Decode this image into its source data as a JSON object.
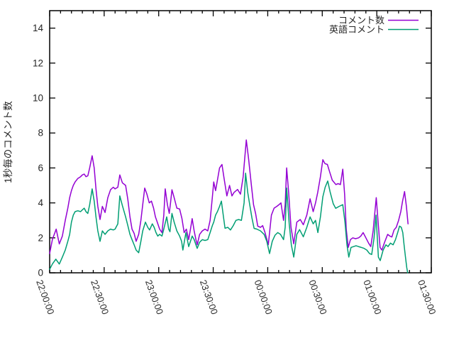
{
  "window": {
    "background": "#ffffff"
  },
  "chart_data": {
    "type": "line",
    "title": "",
    "xlabel": "",
    "ylabel": "1秒毎のコメント数",
    "grid": false,
    "legend_position": "top-right-inside",
    "axis_color": "#000000",
    "text_color": "#262626",
    "background": "#ffffff",
    "ylim": [
      0,
      15
    ],
    "y_ticks": [
      0,
      2,
      4,
      6,
      8,
      10,
      12,
      14
    ],
    "xlim_minutes": [
      0,
      210
    ],
    "x_minor_step_minutes": 6,
    "x_ticks": [
      {
        "t": 0,
        "label": "22:00:00"
      },
      {
        "t": 30,
        "label": "22:30:00"
      },
      {
        "t": 60,
        "label": "23:00:00"
      },
      {
        "t": 90,
        "label": "23:30:00"
      },
      {
        "t": 120,
        "label": "00:00:00"
      },
      {
        "t": 150,
        "label": "00:30:00"
      },
      {
        "t": 180,
        "label": "01:00:00"
      },
      {
        "t": 210,
        "label": "01:30:00"
      }
    ],
    "series": [
      {
        "name": "コメント数",
        "color": "#9400d3",
        "points": [
          [
            0,
            1.1
          ],
          [
            1.5,
            1.9
          ],
          [
            3.6,
            2.5
          ],
          [
            5.3,
            1.65
          ],
          [
            7,
            2.1
          ],
          [
            8.6,
            3.0
          ],
          [
            10,
            3.7
          ],
          [
            11,
            4.3
          ],
          [
            12,
            4.7
          ],
          [
            13,
            5.0
          ],
          [
            14,
            5.2
          ],
          [
            15.5,
            5.4
          ],
          [
            17,
            5.5
          ],
          [
            18,
            5.6
          ],
          [
            19,
            5.65
          ],
          [
            20,
            5.5
          ],
          [
            21,
            5.55
          ],
          [
            22,
            6.0
          ],
          [
            23.4,
            6.7
          ],
          [
            24.5,
            6.0
          ],
          [
            25.5,
            4.8
          ],
          [
            26.5,
            3.8
          ],
          [
            27.7,
            3.05
          ],
          [
            29,
            3.8
          ],
          [
            30.5,
            3.45
          ],
          [
            32,
            4.3
          ],
          [
            33.5,
            4.75
          ],
          [
            35,
            4.9
          ],
          [
            36,
            4.8
          ],
          [
            37.5,
            4.9
          ],
          [
            38.6,
            5.6
          ],
          [
            40,
            5.15
          ],
          [
            41.8,
            5.0
          ],
          [
            43,
            4.2
          ],
          [
            44.2,
            3.2
          ],
          [
            45.3,
            2.5
          ],
          [
            46.5,
            2.25
          ],
          [
            47.6,
            1.8
          ],
          [
            49,
            2.2
          ],
          [
            50.2,
            3.0
          ],
          [
            51.2,
            3.9
          ],
          [
            52.3,
            4.85
          ],
          [
            53.5,
            4.5
          ],
          [
            54.8,
            4.0
          ],
          [
            56,
            4.1
          ],
          [
            57.2,
            3.7
          ],
          [
            58.2,
            3.2
          ],
          [
            59.2,
            2.9
          ],
          [
            60.5,
            2.5
          ],
          [
            61.8,
            2.3
          ],
          [
            62.8,
            3.3
          ],
          [
            63.6,
            4.8
          ],
          [
            64.8,
            3.9
          ],
          [
            65.8,
            3.4
          ],
          [
            66.5,
            4.0
          ],
          [
            67.3,
            4.75
          ],
          [
            68.5,
            4.3
          ],
          [
            70,
            3.7
          ],
          [
            71.5,
            3.65
          ],
          [
            72.8,
            3.1
          ],
          [
            74,
            2.3
          ],
          [
            75.2,
            2.5
          ],
          [
            76.5,
            1.9
          ],
          [
            77.5,
            2.5
          ],
          [
            78.4,
            3.1
          ],
          [
            79.5,
            2.4
          ],
          [
            80.5,
            1.9
          ],
          [
            81.2,
            1.6
          ],
          [
            82.5,
            2.2
          ],
          [
            84,
            2.4
          ],
          [
            85.5,
            2.5
          ],
          [
            87,
            2.4
          ],
          [
            88.3,
            3.0
          ],
          [
            89.5,
            4.3
          ],
          [
            90.3,
            5.2
          ],
          [
            91.3,
            4.7
          ],
          [
            92.3,
            5.3
          ],
          [
            93.5,
            6.0
          ],
          [
            94.8,
            6.2
          ],
          [
            96,
            5.4
          ],
          [
            97.5,
            4.4
          ],
          [
            99,
            5.0
          ],
          [
            100.3,
            4.4
          ],
          [
            101.5,
            4.6
          ],
          [
            103.4,
            4.77
          ],
          [
            105,
            4.5
          ],
          [
            106.5,
            5.5
          ],
          [
            108.2,
            7.6
          ],
          [
            109.5,
            6.5
          ],
          [
            111,
            5.0
          ],
          [
            112.2,
            3.9
          ],
          [
            113.3,
            3.4
          ],
          [
            114.5,
            2.67
          ],
          [
            116,
            2.6
          ],
          [
            117.2,
            2.7
          ],
          [
            118.5,
            2.3
          ],
          [
            120.3,
            1.6
          ],
          [
            122,
            3.3
          ],
          [
            123.5,
            3.7
          ],
          [
            125,
            3.8
          ],
          [
            126.2,
            3.9
          ],
          [
            127.3,
            4.0
          ],
          [
            128.7,
            3.0
          ],
          [
            129.6,
            3.9
          ],
          [
            130.4,
            6.0
          ],
          [
            131.5,
            4.6
          ],
          [
            132.8,
            2.6
          ],
          [
            134.3,
            1.66
          ],
          [
            136,
            2.9
          ],
          [
            137.9,
            3.05
          ],
          [
            139.6,
            2.75
          ],
          [
            141.5,
            3.3
          ],
          [
            143.3,
            4.23
          ],
          [
            145,
            3.5
          ],
          [
            146.3,
            4.0
          ],
          [
            147.5,
            4.6
          ],
          [
            149,
            5.5
          ],
          [
            150.3,
            6.47
          ],
          [
            151.5,
            6.25
          ],
          [
            152.8,
            6.2
          ],
          [
            154,
            5.8
          ],
          [
            155.5,
            5.3
          ],
          [
            157.5,
            5.05
          ],
          [
            158.7,
            5.1
          ],
          [
            160,
            5.05
          ],
          [
            161.3,
            5.93
          ],
          [
            162.3,
            4.5
          ],
          [
            163.2,
            2.5
          ],
          [
            164.3,
            1.45
          ],
          [
            165.5,
            1.9
          ],
          [
            166.8,
            2.0
          ],
          [
            168.3,
            1.95
          ],
          [
            170,
            2.0
          ],
          [
            171.2,
            2.1
          ],
          [
            172.5,
            2.3
          ],
          [
            174,
            2.0
          ],
          [
            175.5,
            1.7
          ],
          [
            176.7,
            1.5
          ],
          [
            178,
            2.4
          ],
          [
            179.7,
            4.3
          ],
          [
            180.8,
            2.8
          ],
          [
            181.8,
            1.45
          ],
          [
            182.8,
            1.3
          ],
          [
            184.3,
            1.75
          ],
          [
            186,
            2.2
          ],
          [
            187.2,
            2.1
          ],
          [
            188.3,
            2.05
          ],
          [
            189.5,
            2.45
          ],
          [
            190.7,
            2.6
          ],
          [
            192,
            3.0
          ],
          [
            193.2,
            3.5
          ],
          [
            194.2,
            4.1
          ],
          [
            195.3,
            4.65
          ],
          [
            196.3,
            3.8
          ],
          [
            197.2,
            2.8
          ]
        ]
      },
      {
        "name": "英語コメント",
        "color": "#009e73",
        "points": [
          [
            0,
            0.2
          ],
          [
            1.5,
            0.5
          ],
          [
            3.4,
            0.78
          ],
          [
            5.3,
            0.5
          ],
          [
            7,
            0.9
          ],
          [
            8.6,
            1.3
          ],
          [
            10,
            1.8
          ],
          [
            11,
            2.2
          ],
          [
            12,
            2.9
          ],
          [
            13,
            3.3
          ],
          [
            14,
            3.5
          ],
          [
            15.5,
            3.55
          ],
          [
            17,
            3.5
          ],
          [
            18,
            3.6
          ],
          [
            19,
            3.7
          ],
          [
            20,
            3.5
          ],
          [
            21,
            3.4
          ],
          [
            22,
            3.9
          ],
          [
            23.4,
            4.8
          ],
          [
            24.5,
            4.1
          ],
          [
            25.5,
            3.2
          ],
          [
            26.5,
            2.4
          ],
          [
            27.7,
            1.8
          ],
          [
            29,
            2.4
          ],
          [
            30.5,
            2.2
          ],
          [
            32,
            2.4
          ],
          [
            33.5,
            2.5
          ],
          [
            35,
            2.45
          ],
          [
            36,
            2.5
          ],
          [
            37.5,
            2.8
          ],
          [
            38.6,
            4.4
          ],
          [
            40,
            3.85
          ],
          [
            41.8,
            3.2
          ],
          [
            43,
            2.7
          ],
          [
            44.2,
            2.2
          ],
          [
            45.3,
            1.9
          ],
          [
            46.5,
            1.6
          ],
          [
            47.6,
            1.3
          ],
          [
            49,
            1.15
          ],
          [
            50.2,
            1.8
          ],
          [
            51.2,
            2.4
          ],
          [
            52.7,
            2.9
          ],
          [
            54,
            2.6
          ],
          [
            55,
            2.45
          ],
          [
            56.5,
            2.8
          ],
          [
            57.5,
            2.6
          ],
          [
            58.5,
            2.3
          ],
          [
            59.5,
            2.1
          ],
          [
            60.5,
            2.2
          ],
          [
            61.8,
            2.1
          ],
          [
            62.8,
            2.5
          ],
          [
            64.4,
            3.2
          ],
          [
            65.5,
            2.5
          ],
          [
            66.2,
            2.35
          ],
          [
            67.3,
            3.4
          ],
          [
            68.5,
            2.9
          ],
          [
            70,
            2.4
          ],
          [
            71.5,
            2.1
          ],
          [
            72.6,
            1.8
          ],
          [
            73.3,
            1.3
          ],
          [
            75,
            2.3
          ],
          [
            76.5,
            1.5
          ],
          [
            78.4,
            2.1
          ],
          [
            79.5,
            1.9
          ],
          [
            80.5,
            1.6
          ],
          [
            81.2,
            1.4
          ],
          [
            82.5,
            1.75
          ],
          [
            84,
            1.9
          ],
          [
            85.5,
            1.85
          ],
          [
            87,
            1.9
          ],
          [
            88.3,
            2.3
          ],
          [
            89.5,
            2.7
          ],
          [
            90.3,
            2.9
          ],
          [
            91.3,
            3.3
          ],
          [
            92.3,
            3.5
          ],
          [
            93.5,
            3.8
          ],
          [
            94.5,
            4.1
          ],
          [
            95.5,
            3.3
          ],
          [
            96.5,
            2.55
          ],
          [
            98,
            2.6
          ],
          [
            99.5,
            2.45
          ],
          [
            101,
            2.7
          ],
          [
            102.5,
            3.0
          ],
          [
            104,
            3.05
          ],
          [
            105.5,
            3.0
          ],
          [
            107,
            4.0
          ],
          [
            107.8,
            5.7
          ],
          [
            109,
            4.6
          ],
          [
            110,
            3.95
          ],
          [
            111.3,
            3.15
          ],
          [
            112.5,
            2.54
          ],
          [
            114,
            2.5
          ],
          [
            116,
            2.4
          ],
          [
            118,
            2.2
          ],
          [
            119.5,
            1.8
          ],
          [
            121,
            1.1
          ],
          [
            122.5,
            1.8
          ],
          [
            124,
            2.15
          ],
          [
            125.5,
            2.3
          ],
          [
            127,
            2.2
          ],
          [
            128.7,
            1.9
          ],
          [
            129.6,
            2.6
          ],
          [
            130.4,
            4.85
          ],
          [
            131.8,
            2.8
          ],
          [
            133,
            1.6
          ],
          [
            134.3,
            0.9
          ],
          [
            136,
            2.2
          ],
          [
            137.5,
            2.47
          ],
          [
            139.6,
            2.06
          ],
          [
            141.5,
            2.6
          ],
          [
            143.3,
            3.2
          ],
          [
            145,
            2.8
          ],
          [
            146.3,
            3.0
          ],
          [
            147.6,
            2.3
          ],
          [
            149,
            3.2
          ],
          [
            150.3,
            4.35
          ],
          [
            151.6,
            4.9
          ],
          [
            153,
            5.25
          ],
          [
            154.3,
            4.64
          ],
          [
            156,
            3.96
          ],
          [
            157.4,
            3.69
          ],
          [
            159.3,
            3.8
          ],
          [
            161.3,
            3.9
          ],
          [
            162.5,
            2.9
          ],
          [
            163.6,
            1.6
          ],
          [
            164.6,
            0.9
          ],
          [
            165.8,
            1.45
          ],
          [
            167.2,
            1.5
          ],
          [
            168.6,
            1.55
          ],
          [
            170,
            1.5
          ],
          [
            171.5,
            1.45
          ],
          [
            173,
            1.4
          ],
          [
            174.5,
            1.3
          ],
          [
            176,
            1.1
          ],
          [
            177.2,
            1.05
          ],
          [
            178.5,
            2.0
          ],
          [
            179.6,
            3.3
          ],
          [
            180.9,
            0.9
          ],
          [
            181.9,
            0.7
          ],
          [
            183.5,
            1.3
          ],
          [
            185,
            1.6
          ],
          [
            186.2,
            1.5
          ],
          [
            187.5,
            1.7
          ],
          [
            189,
            1.6
          ],
          [
            190.3,
            1.9
          ],
          [
            191.5,
            2.3
          ],
          [
            192.5,
            2.67
          ],
          [
            193.5,
            2.6
          ],
          [
            194.3,
            2.3
          ],
          [
            195,
            1.6
          ],
          [
            195.8,
            0.9
          ],
          [
            196.5,
            0.3
          ],
          [
            197,
            0
          ]
        ]
      }
    ]
  }
}
